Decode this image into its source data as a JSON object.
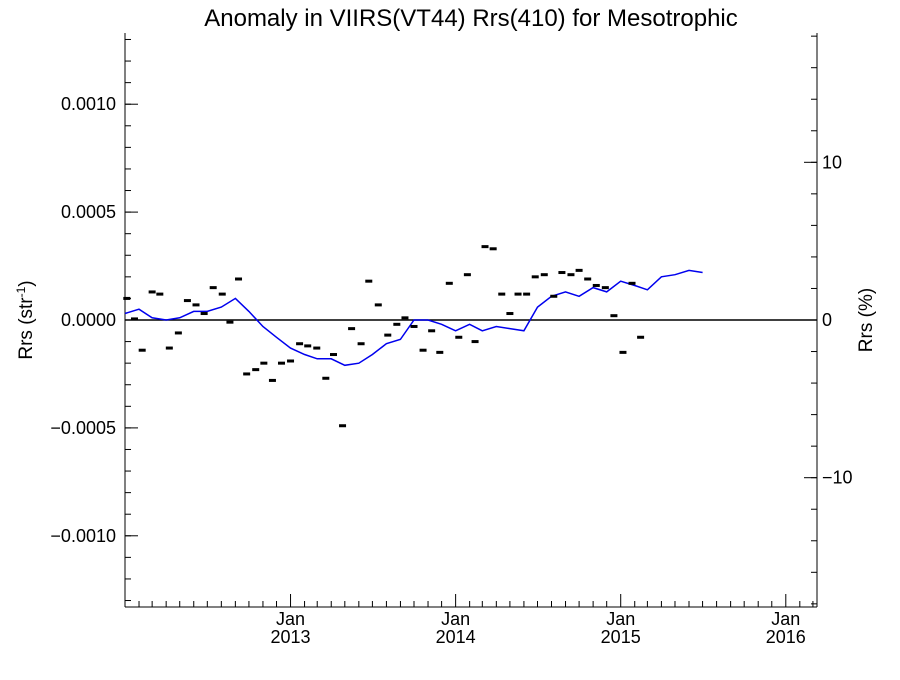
{
  "chart_data": {
    "type": "scatter",
    "title": "Anomaly in VIIRS(VT44) Rrs(410) for Mesotrophic",
    "ylabel_left": "Rrs (str",
    "ylabel_left_sup": "-1",
    "ylabel_left_close": ")",
    "ylabel_right": "Rrs (%)",
    "xlim": [
      "2012-01-01",
      "2016-03-10"
    ],
    "ylim_left": [
      -0.00133,
      0.00133
    ],
    "ylim_right": [
      -18.2,
      18.2
    ],
    "grid": false,
    "zero_line": true,
    "colors": {
      "line": "#0000ee",
      "marker": "#000000",
      "axis": "#000000"
    },
    "x_ticks": [
      {
        "date": "2013-01-01",
        "month": "Jan",
        "year": "2013"
      },
      {
        "date": "2014-01-01",
        "month": "Jan",
        "year": "2014"
      },
      {
        "date": "2015-01-01",
        "month": "Jan",
        "year": "2015"
      },
      {
        "date": "2016-01-01",
        "month": "Jan",
        "year": "2016"
      }
    ],
    "y_ticks_left": [
      {
        "value": 0.001,
        "label": "0.0010"
      },
      {
        "value": 0.0005,
        "label": "0.0005"
      },
      {
        "value": 0.0,
        "label": "0.0000"
      },
      {
        "value": -0.0005,
        "label": "−0.0005"
      },
      {
        "value": -0.001,
        "label": "−0.0010"
      }
    ],
    "y_ticks_right": [
      {
        "value": 10,
        "label": "10"
      },
      {
        "value": 0,
        "label": "0"
      },
      {
        "value": -10,
        "label": "−10"
      }
    ],
    "series": [
      {
        "kind": "markers",
        "points": [
          [
            "2012-01-05",
            0.0001
          ],
          [
            "2012-01-22",
            5e-06
          ],
          [
            "2012-02-08",
            -0.00014
          ],
          [
            "2012-03-01",
            0.00013
          ],
          [
            "2012-03-18",
            0.00012
          ],
          [
            "2012-04-08",
            -0.00013
          ],
          [
            "2012-04-28",
            -6e-05
          ],
          [
            "2012-05-18",
            9e-05
          ],
          [
            "2012-06-06",
            7e-05
          ],
          [
            "2012-06-24",
            3e-05
          ],
          [
            "2012-07-14",
            0.00015
          ],
          [
            "2012-08-03",
            0.00012
          ],
          [
            "2012-08-20",
            -1e-05
          ],
          [
            "2012-09-08",
            0.00019
          ],
          [
            "2012-09-26",
            -0.00025
          ],
          [
            "2012-10-16",
            -0.00023
          ],
          [
            "2012-11-03",
            -0.0002
          ],
          [
            "2012-11-22",
            -0.00028
          ],
          [
            "2012-12-12",
            -0.0002
          ],
          [
            "2013-01-01",
            -0.00019
          ],
          [
            "2013-01-21",
            -0.00011
          ],
          [
            "2013-02-08",
            -0.00012
          ],
          [
            "2013-02-28",
            -0.00013
          ],
          [
            "2013-03-20",
            -0.00027
          ],
          [
            "2013-04-06",
            -0.00016
          ],
          [
            "2013-04-26",
            -0.00049
          ],
          [
            "2013-05-16",
            -4e-05
          ],
          [
            "2013-06-06",
            -0.00011
          ],
          [
            "2013-06-23",
            0.00018
          ],
          [
            "2013-07-14",
            7e-05
          ],
          [
            "2013-08-04",
            -7e-05
          ],
          [
            "2013-08-24",
            -2e-05
          ],
          [
            "2013-09-11",
            1e-05
          ],
          [
            "2013-10-01",
            -3e-05
          ],
          [
            "2013-10-21",
            -0.00014
          ],
          [
            "2013-11-09",
            -5e-05
          ],
          [
            "2013-11-27",
            -0.00015
          ],
          [
            "2013-12-18",
            0.00017
          ],
          [
            "2014-01-08",
            -8e-05
          ],
          [
            "2014-01-27",
            0.00021
          ],
          [
            "2014-02-13",
            -0.0001
          ],
          [
            "2014-03-07",
            0.00034
          ],
          [
            "2014-03-25",
            0.00033
          ],
          [
            "2014-04-13",
            0.00012
          ],
          [
            "2014-05-01",
            3e-05
          ],
          [
            "2014-05-19",
            0.00012
          ],
          [
            "2014-06-07",
            0.00012
          ],
          [
            "2014-06-26",
            0.0002
          ],
          [
            "2014-07-16",
            0.00021
          ],
          [
            "2014-08-06",
            0.00011
          ],
          [
            "2014-08-24",
            0.00022
          ],
          [
            "2014-09-13",
            0.00021
          ],
          [
            "2014-10-01",
            0.00023
          ],
          [
            "2014-10-20",
            0.00019
          ],
          [
            "2014-11-08",
            0.00016
          ],
          [
            "2014-11-28",
            0.00015
          ],
          [
            "2014-12-17",
            2e-05
          ],
          [
            "2015-01-06",
            -0.00015
          ],
          [
            "2015-01-26",
            0.00017
          ],
          [
            "2015-02-14",
            -8e-05
          ]
        ]
      },
      {
        "kind": "line",
        "name": "",
        "points": [
          [
            "2012-01-01",
            3e-05
          ],
          [
            "2012-02-01",
            5e-05
          ],
          [
            "2012-03-01",
            1e-05
          ],
          [
            "2012-04-01",
            0.0
          ],
          [
            "2012-05-01",
            1e-05
          ],
          [
            "2012-06-01",
            4e-05
          ],
          [
            "2012-07-01",
            4e-05
          ],
          [
            "2012-08-01",
            6e-05
          ],
          [
            "2012-09-01",
            0.0001
          ],
          [
            "2012-10-01",
            4e-05
          ],
          [
            "2012-11-01",
            -3e-05
          ],
          [
            "2012-12-01",
            -8e-05
          ],
          [
            "2013-01-01",
            -0.00013
          ],
          [
            "2013-02-01",
            -0.00016
          ],
          [
            "2013-03-01",
            -0.00018
          ],
          [
            "2013-04-01",
            -0.00018
          ],
          [
            "2013-05-01",
            -0.00021
          ],
          [
            "2013-06-01",
            -0.0002
          ],
          [
            "2013-07-01",
            -0.00016
          ],
          [
            "2013-08-01",
            -0.00011
          ],
          [
            "2013-09-01",
            -9e-05
          ],
          [
            "2013-10-01",
            0.0
          ],
          [
            "2013-11-01",
            0.0
          ],
          [
            "2013-12-01",
            -2e-05
          ],
          [
            "2014-01-01",
            -5e-05
          ],
          [
            "2014-02-01",
            -2e-05
          ],
          [
            "2014-03-01",
            -5e-05
          ],
          [
            "2014-04-01",
            -3e-05
          ],
          [
            "2014-05-01",
            -4e-05
          ],
          [
            "2014-06-01",
            -5e-05
          ],
          [
            "2014-07-01",
            6e-05
          ],
          [
            "2014-08-01",
            0.00011
          ],
          [
            "2014-09-01",
            0.00013
          ],
          [
            "2014-10-01",
            0.00011
          ],
          [
            "2014-11-01",
            0.00015
          ],
          [
            "2014-12-01",
            0.00013
          ],
          [
            "2015-01-01",
            0.00018
          ],
          [
            "2015-02-01",
            0.00016
          ],
          [
            "2015-03-01",
            0.00014
          ],
          [
            "2015-04-01",
            0.0002
          ],
          [
            "2015-05-01",
            0.00021
          ],
          [
            "2015-06-01",
            0.00023
          ],
          [
            "2015-07-01",
            0.00022
          ]
        ]
      }
    ]
  }
}
